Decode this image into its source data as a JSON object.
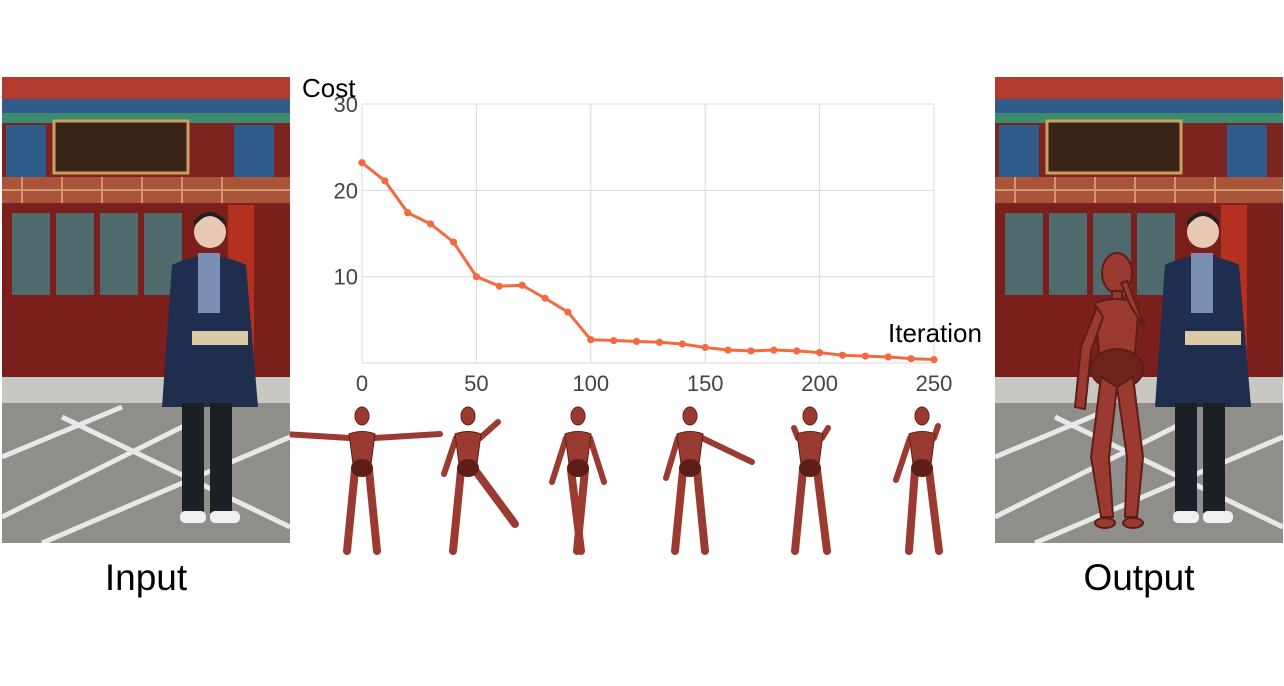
{
  "labels": {
    "input": "Input",
    "output": "Output"
  },
  "colors": {
    "line": "#f26a3f",
    "grid": "#d9d9d9",
    "mannequin": "#9b3a31",
    "mannequin_shade": "#5e1e18"
  },
  "chart_data": {
    "type": "line",
    "ylabel": "Cost",
    "xlabel": "Iteration",
    "xlim": [
      0,
      250
    ],
    "ylim": [
      0,
      30
    ],
    "x_ticks": [
      "0",
      "50",
      "100",
      "150",
      "200",
      "250"
    ],
    "y_ticks": [
      "10",
      "20",
      "30"
    ],
    "grid": true,
    "series": [
      {
        "x": [
          0,
          10,
          20,
          30,
          40,
          50,
          60,
          70,
          80,
          90,
          100,
          110,
          120,
          130,
          140,
          150,
          160,
          170,
          180,
          190,
          200,
          210,
          220,
          230,
          240,
          250
        ],
        "values": [
          23.2,
          21.1,
          17.4,
          16.1,
          14,
          10,
          8.9,
          9,
          7.5,
          5.9,
          2.7,
          2.6,
          2.5,
          2.4,
          2.2,
          1.8,
          1.5,
          1.4,
          1.5,
          1.4,
          1.2,
          0.9,
          0.8,
          0.7,
          0.5,
          0.4
        ]
      }
    ]
  },
  "poses": [
    "t-pose",
    "leg-raised",
    "crossed-legs",
    "arm-out",
    "hands-to-face",
    "hand-to-face"
  ]
}
